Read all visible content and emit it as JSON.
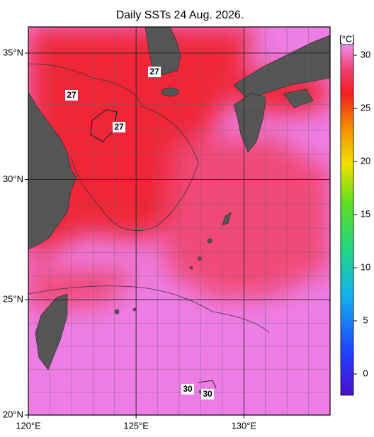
{
  "title": "Daily SSTs 24 Aug. 2026.",
  "map": {
    "lon_lim": [
      120,
      134
    ],
    "lat_lim": [
      20,
      36
    ],
    "lat_ticks": [
      {
        "value": 35,
        "label": "35°N"
      },
      {
        "value": 30,
        "label": "30°N"
      },
      {
        "value": 25,
        "label": "25°N"
      },
      {
        "value": 20,
        "label": "20°N"
      }
    ],
    "lon_ticks": [
      {
        "value": 120,
        "label": "120°E"
      },
      {
        "value": 125,
        "label": "125°E"
      },
      {
        "value": 130,
        "label": "130°E"
      }
    ],
    "contour_labels": [
      27,
      27,
      27,
      30,
      30
    ]
  },
  "colorbar": {
    "label": "[°C]",
    "lim": [
      -2,
      31
    ],
    "ticks": [
      0,
      5,
      10,
      15,
      20,
      25,
      30
    ]
  }
}
